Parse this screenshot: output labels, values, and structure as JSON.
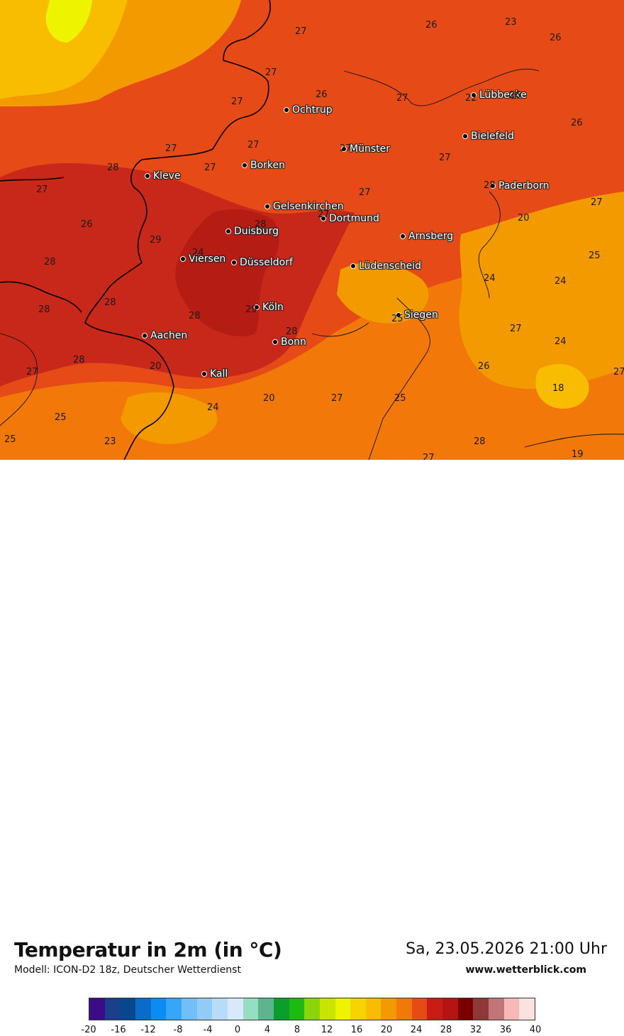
{
  "title": "Temperatur in 2m (in °C)",
  "model_line": "Modell: ICON-D2 18z, Deutscher Wetterdienst",
  "datetime": "Sa, 23.05.2026 21:00 Uhr",
  "website": "www.wetterblick.com",
  "cities": [
    {
      "name": "Ochtrup"
    },
    {
      "name": "Lübbecke"
    },
    {
      "name": "Bielefeld"
    },
    {
      "name": "Münster"
    },
    {
      "name": "Borken"
    },
    {
      "name": "Kleve"
    },
    {
      "name": "Paderborn"
    },
    {
      "name": "Gelsenkirchen"
    },
    {
      "name": "Dortmund"
    },
    {
      "name": "Duisburg"
    },
    {
      "name": "Arnsberg"
    },
    {
      "name": "Viersen"
    },
    {
      "name": "Düsseldorf"
    },
    {
      "name": "Lüdenscheid"
    },
    {
      "name": "Köln"
    },
    {
      "name": "Siegen"
    },
    {
      "name": "Aachen"
    },
    {
      "name": "Bonn"
    },
    {
      "name": "Kall"
    }
  ],
  "values": [
    "27",
    "26",
    "23",
    "26",
    "27",
    "26",
    "27",
    "22",
    "26",
    "27",
    "26",
    "27",
    "27",
    "28",
    "27",
    "27",
    "27",
    "27",
    "27",
    "26",
    "28",
    "27",
    "29",
    "28",
    "24",
    "28",
    "27",
    "20",
    "28",
    "28",
    "29",
    "28",
    "24",
    "25",
    "28",
    "25",
    "24",
    "27",
    "20",
    "27",
    "28",
    "24",
    "20",
    "27",
    "25",
    "26",
    "18",
    "25",
    "25",
    "23",
    "27",
    "28",
    "19",
    "24",
    "27"
  ],
  "legend": {
    "colors": [
      "#3b0c86",
      "#1c3f8b",
      "#08478d",
      "#0a6cc8",
      "#0a8cf2",
      "#38a6f8",
      "#72bef8",
      "#92cbf8",
      "#b8dcf8",
      "#d8eafa",
      "#96dec2",
      "#5eb48e",
      "#0a9e2e",
      "#1eba14",
      "#8cd40a",
      "#c8e400",
      "#eef400",
      "#f6d400",
      "#f8bc00",
      "#f29a00",
      "#f2780a",
      "#e64a16",
      "#c81c14",
      "#b41414",
      "#7a0000",
      "#8e3838",
      "#c07676",
      "#f8b8b8",
      "#fde0e0"
    ],
    "ticks": [
      "-20",
      "-16",
      "-12",
      "-8",
      "-4",
      "0",
      "4",
      "8",
      "12",
      "16",
      "20",
      "24",
      "28",
      "32",
      "36",
      "40"
    ]
  }
}
